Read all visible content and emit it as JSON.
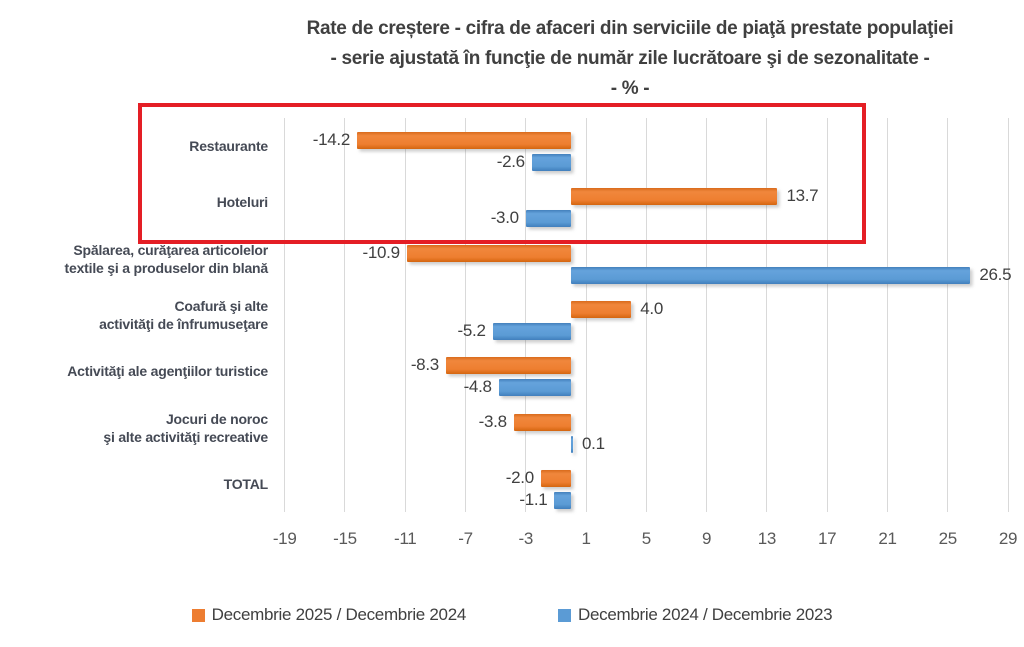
{
  "title": {
    "line1": "Rate de creștere - cifra de afaceri din serviciile de piaţă prestate populaţiei",
    "line2": "- serie ajustată în funcţie de număr zile lucrătoare şi de sezonalitate -",
    "line3": "- % -"
  },
  "chart_data": {
    "type": "bar",
    "orientation": "horizontal",
    "categories": [
      "Restaurante",
      "Hoteluri",
      "Spălarea, curăţarea articolelor\ntextile şi a produselor din blană",
      "Coafură şi alte\nactivităţi de înfrumuseţare",
      "Activităţi ale agenţiilor turistice",
      "Jocuri de noroc\nşi alte activităţi recreative",
      "TOTAL"
    ],
    "series": [
      {
        "name": "Decembrie 2025 / Decembrie 2024",
        "color": "#ED7D31",
        "values": [
          -14.2,
          13.7,
          -10.9,
          4.0,
          -8.3,
          -3.8,
          -2.0
        ]
      },
      {
        "name": "Decembrie 2024 / Decembrie 2023",
        "color": "#5B9BD5",
        "values": [
          -2.6,
          -3.0,
          26.5,
          -5.2,
          -4.8,
          0.1,
          -1.1
        ]
      }
    ],
    "data_labels": {
      "series0": [
        "-14.2",
        "13.7",
        "-10.9",
        "4.0",
        "-8.3",
        "-3.8",
        "-2.0"
      ],
      "series1": [
        "-2.6",
        "-3.0",
        "26.5",
        "-5.2",
        "-4.8",
        "0.1",
        "-1.1"
      ]
    },
    "xticks": [
      -19,
      -15,
      -11,
      -7,
      -3,
      1,
      5,
      9,
      13,
      17,
      21,
      25,
      29
    ],
    "xlim": [
      -19,
      29
    ],
    "grid": true,
    "gridline_color": "#D9D9D9",
    "legend_position": "bottom",
    "unit": "%"
  },
  "annotations": {
    "highlight_box": {
      "color": "#E41E25",
      "highlighted_categories": [
        "Restaurante",
        "Hoteluri"
      ]
    }
  }
}
